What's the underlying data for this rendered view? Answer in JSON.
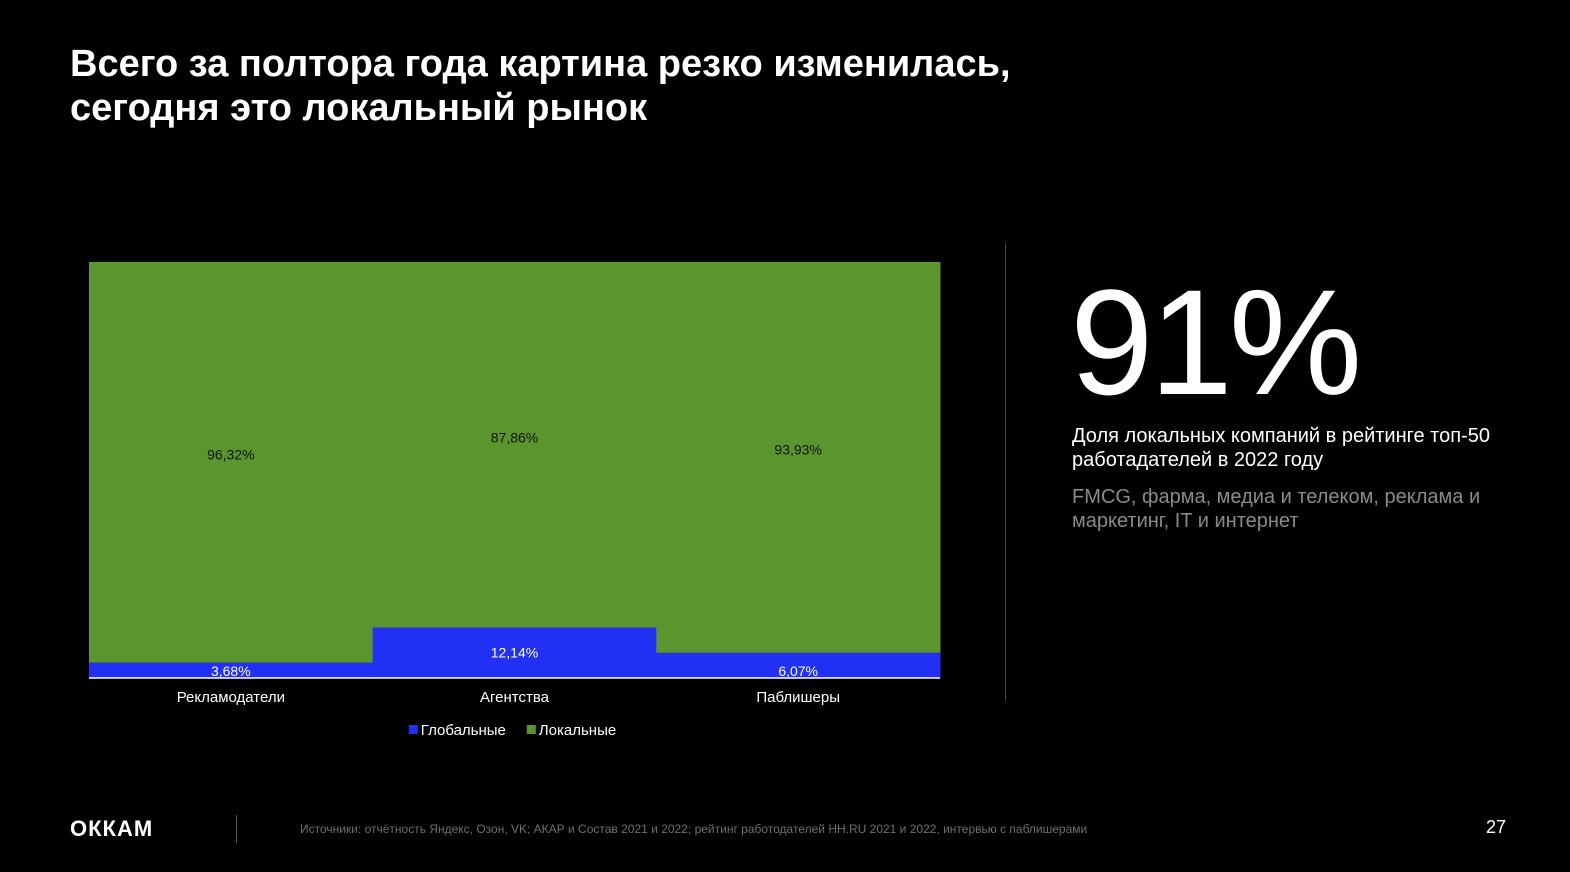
{
  "slide": {
    "title_line1": "Всего за полтора года картина резко изменилась,",
    "title_line2": "сегодня это локальный рынок"
  },
  "kpi": {
    "value": "91%",
    "label": "Доля локальных компаний в рейтинге топ-50 работадателей в 2022 году",
    "note": "FMCG, фарма, медиа и телеком, реклама и маркетинг, IT и интернет"
  },
  "footer": {
    "logo": "ОККАМ",
    "sources": "Источники: отчётность Яндекс, Озон, VK; АКАР и Состав 2021 и 2022; рейтинг работодателей HH.RU 2021 и 2022, интервью с паблишерами",
    "page_number": "27"
  },
  "chart_data": {
    "type": "bar",
    "stacked": true,
    "percent_stacked": true,
    "categories": [
      "Рекламодатели",
      "Агентства",
      "Паблишеры"
    ],
    "series": [
      {
        "name": "Глобальные",
        "color": "#2130f2",
        "values": [
          3.68,
          12.14,
          6.07
        ],
        "labels": [
          "3,68%",
          "12,14%",
          "6,07%"
        ]
      },
      {
        "name": "Локальные",
        "color": "#5b952e",
        "values": [
          96.32,
          87.86,
          93.93
        ],
        "labels": [
          "96,32%",
          "87,86%",
          "93,93%"
        ]
      }
    ],
    "ylim": [
      0,
      100
    ],
    "grid": false,
    "legend_position": "bottom"
  }
}
